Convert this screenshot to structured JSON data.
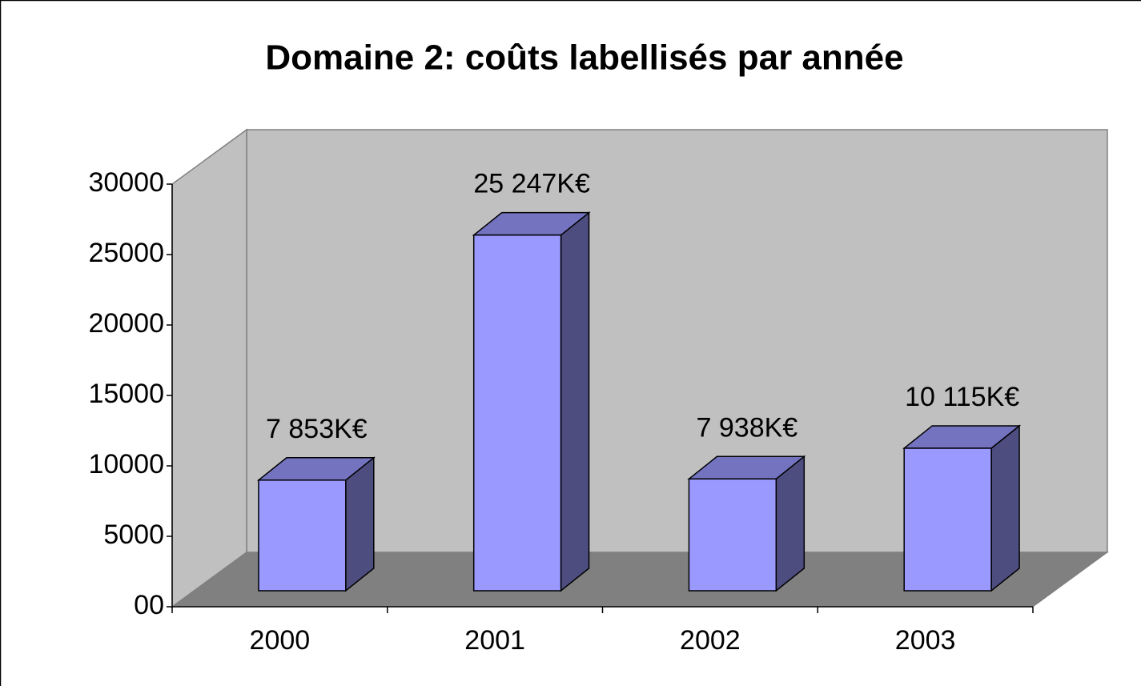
{
  "chart_data": {
    "type": "bar3d",
    "title": "Domaine 2: coûts labellisés par année",
    "categories": [
      "2000",
      "2001",
      "2002",
      "2003"
    ],
    "values": [
      7853,
      25247,
      7938,
      10115
    ],
    "value_labels": [
      "7 853K€",
      "25 247K€",
      "7 938K€",
      "10 115K€"
    ],
    "color": "#9999ff",
    "ylim": [
      0,
      30000
    ],
    "yticks": [
      {
        "value": 0,
        "label": "00"
      },
      5000,
      10000,
      15000,
      20000,
      25000,
      30000
    ]
  }
}
